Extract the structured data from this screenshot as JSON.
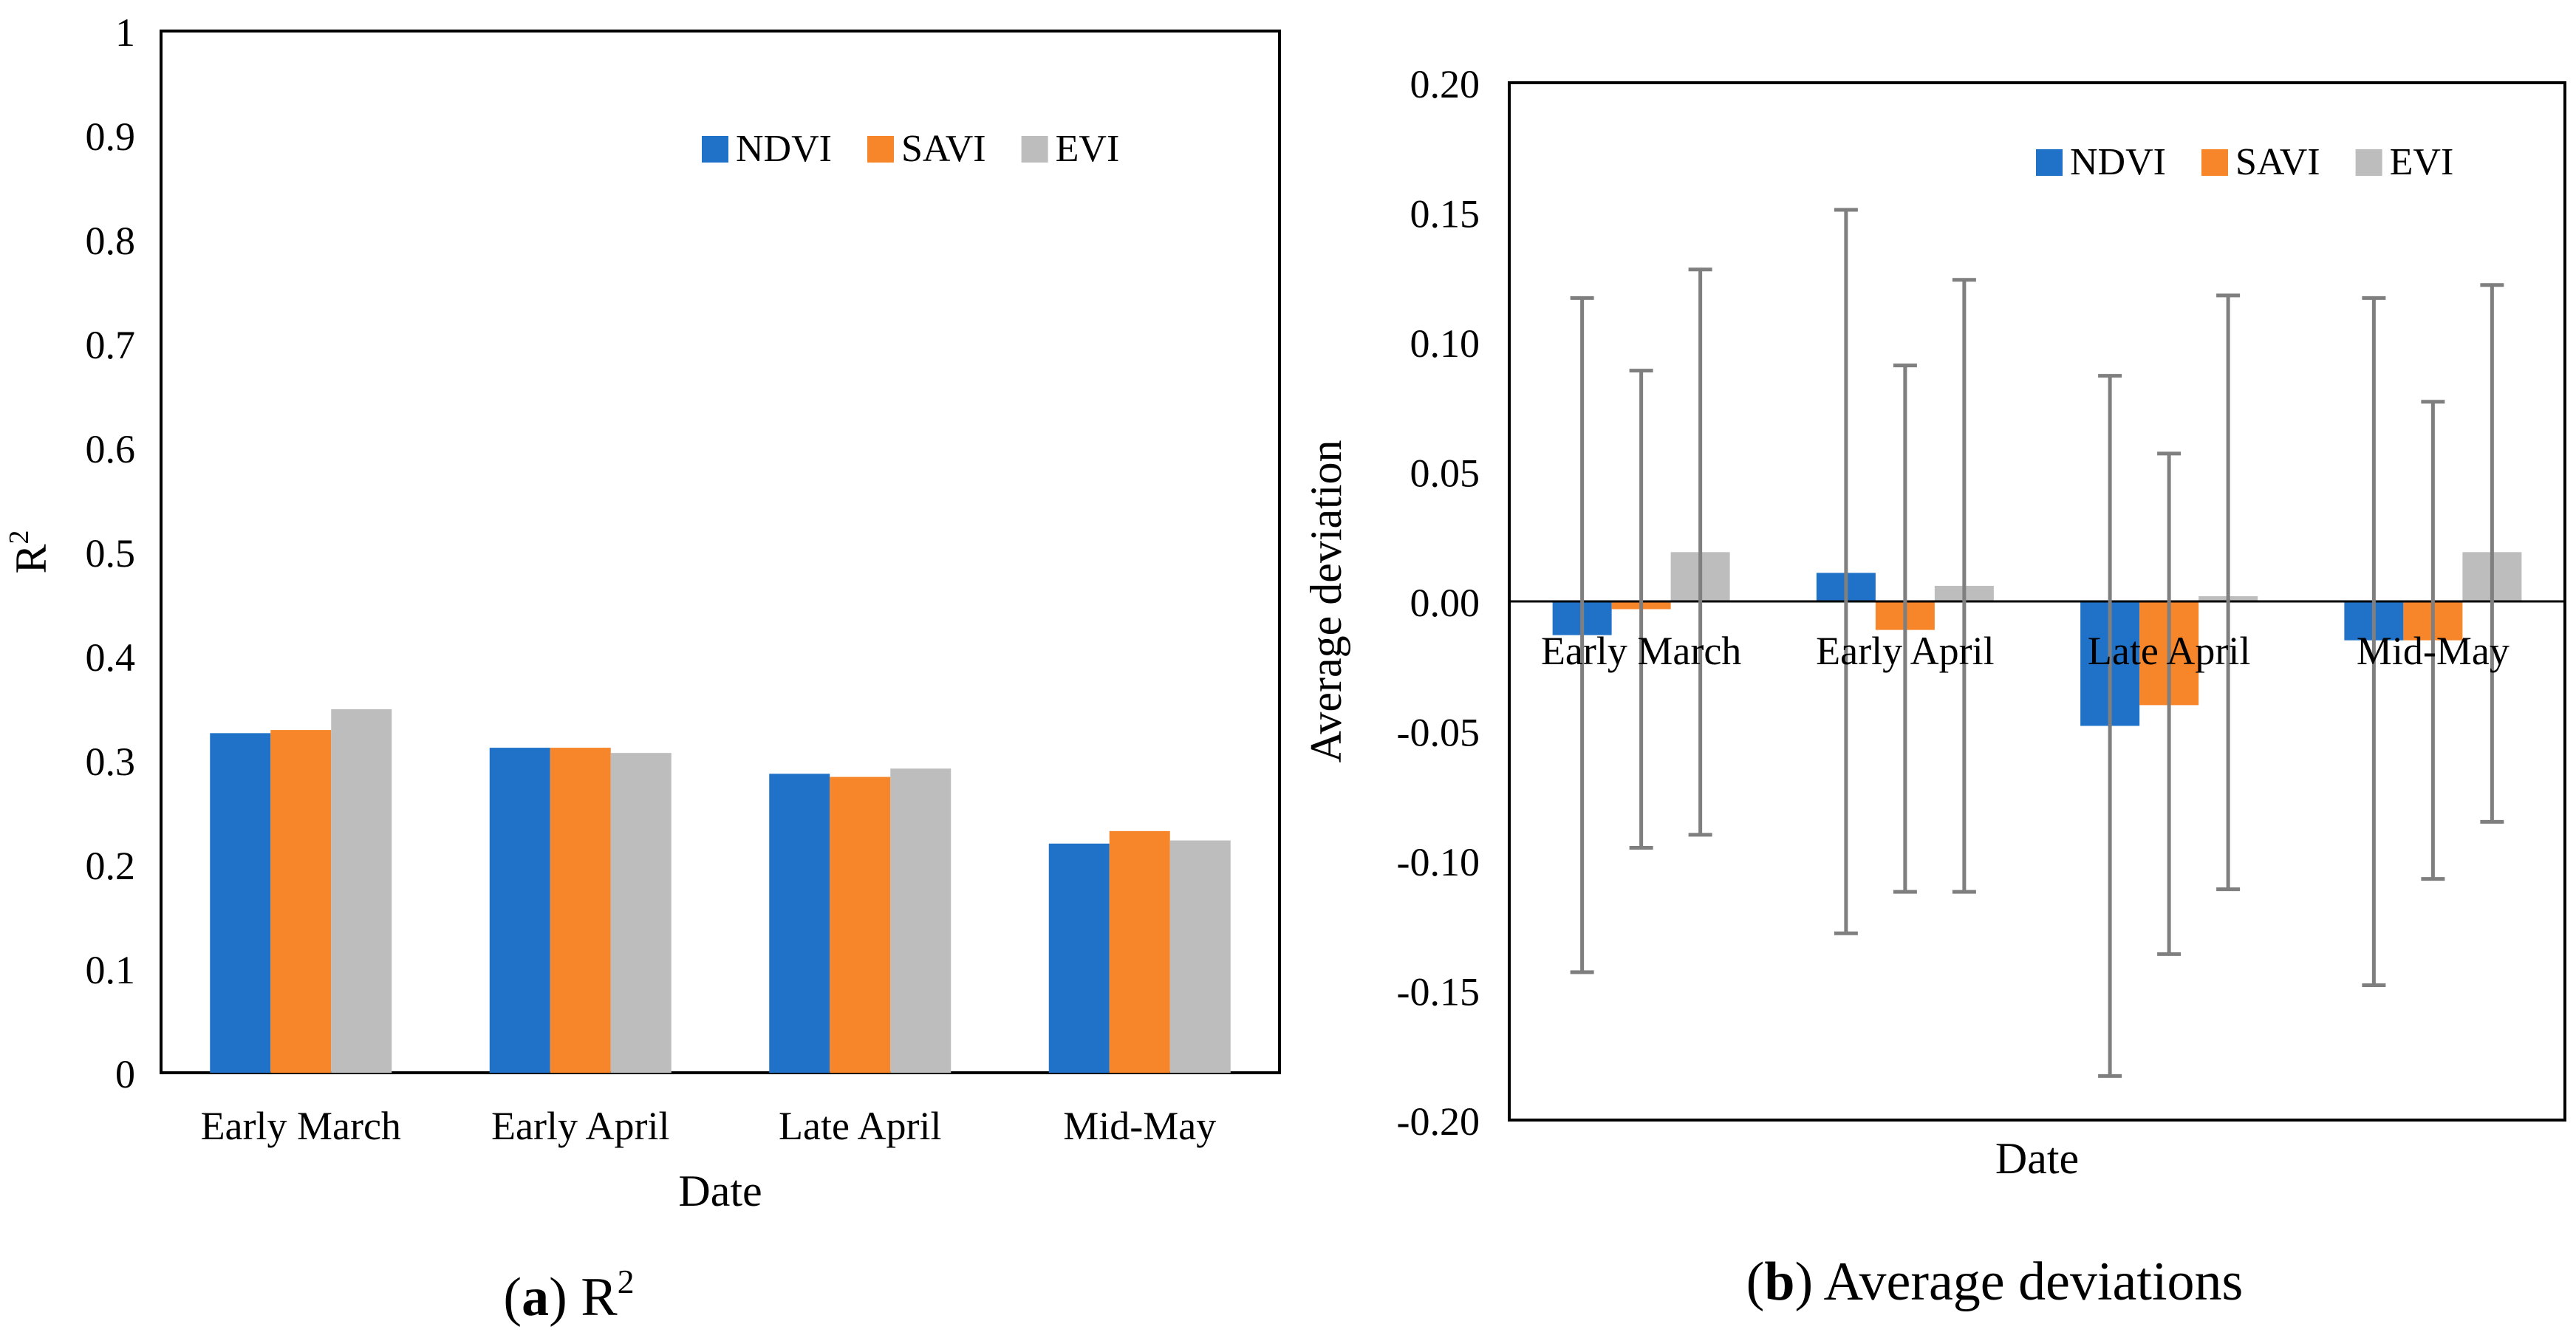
{
  "figure": {
    "caption_a": {
      "letter": "a",
      "text": "R",
      "sup": "2"
    },
    "caption_b": {
      "letter": "b",
      "text": "Average deviations"
    }
  },
  "legend_colors": {
    "NDVI": "#1f72c8",
    "SAVI": "#f7852a",
    "EVI": "#bdbdbd"
  },
  "chart_data": [
    {
      "type": "bar",
      "categories": [
        "Early March",
        "Early April",
        "Late April",
        "Mid-May"
      ],
      "series": [
        {
          "name": "NDVI",
          "values": [
            0.326,
            0.312,
            0.287,
            0.22
          ]
        },
        {
          "name": "SAVI",
          "values": [
            0.329,
            0.312,
            0.284,
            0.232
          ]
        },
        {
          "name": "EVI",
          "values": [
            0.349,
            0.307,
            0.292,
            0.223
          ]
        }
      ],
      "xlabel": "Date",
      "ylabel": {
        "base": "R",
        "sup": "2"
      },
      "ylim": [
        0,
        1
      ],
      "yticks": [
        "0",
        "0.1",
        "0.2",
        "0.3",
        "0.4",
        "0.5",
        "0.6",
        "0.7",
        "0.8",
        "0.9",
        "1"
      ],
      "legend": "top-right"
    },
    {
      "type": "bar",
      "categories": [
        "Early March",
        "Early April",
        "Late April",
        "Mid-May"
      ],
      "series": [
        {
          "name": "NDVI",
          "values": [
            -0.013,
            0.011,
            -0.048,
            -0.015
          ],
          "err_high": [
            0.117,
            0.151,
            0.087,
            0.117
          ],
          "err_low": [
            -0.143,
            -0.128,
            -0.183,
            -0.148
          ]
        },
        {
          "name": "SAVI",
          "values": [
            -0.003,
            -0.011,
            -0.04,
            -0.015
          ],
          "err_high": [
            0.089,
            0.091,
            0.057,
            0.077
          ],
          "err_low": [
            -0.095,
            -0.112,
            -0.136,
            -0.107
          ]
        },
        {
          "name": "EVI",
          "values": [
            0.019,
            0.006,
            0.002,
            0.019
          ],
          "err_high": [
            0.128,
            0.124,
            0.118,
            0.122
          ],
          "err_low": [
            -0.09,
            -0.112,
            -0.111,
            -0.085
          ]
        }
      ],
      "xlabel": "Date",
      "ylabel": "Average deviation",
      "ylim": [
        -0.2,
        0.2
      ],
      "yticks": [
        "0.20",
        "0.15",
        "0.10",
        "0.05",
        "0.00",
        "-0.05",
        "-0.10",
        "-0.15",
        "-0.20"
      ],
      "legend": "top-right"
    }
  ]
}
